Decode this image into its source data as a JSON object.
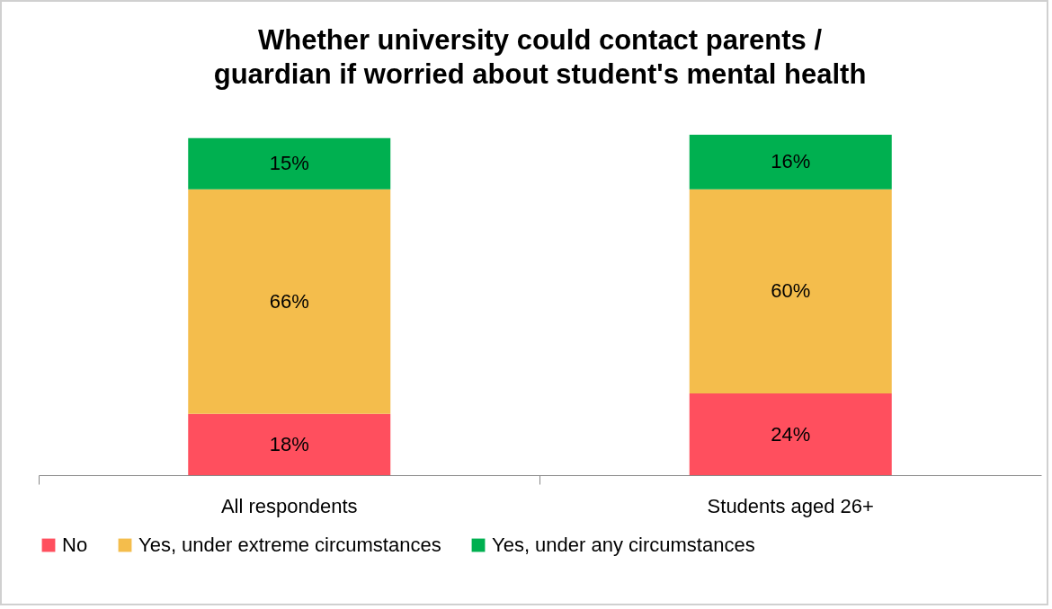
{
  "chart_data": {
    "type": "bar",
    "stacked": true,
    "title": "Whether university could contact parents /\nguardian if worried about student's mental health",
    "categories": [
      "All respondents",
      "Students aged  26+"
    ],
    "legend": "bottom",
    "series": [
      {
        "name": "No",
        "color": "#ff4f5e",
        "values": [
          18,
          24
        ],
        "value_labels": [
          "18%",
          "24%"
        ]
      },
      {
        "name": "Yes, under extreme circumstances",
        "color": "#f4bd4c",
        "values": [
          66,
          60
        ],
        "value_labels": [
          "66%",
          "60%"
        ]
      },
      {
        "name": "Yes, under any circumstances",
        "color": "#00b050",
        "values": [
          15,
          16
        ],
        "value_labels": [
          "15%",
          "16%"
        ]
      }
    ]
  }
}
